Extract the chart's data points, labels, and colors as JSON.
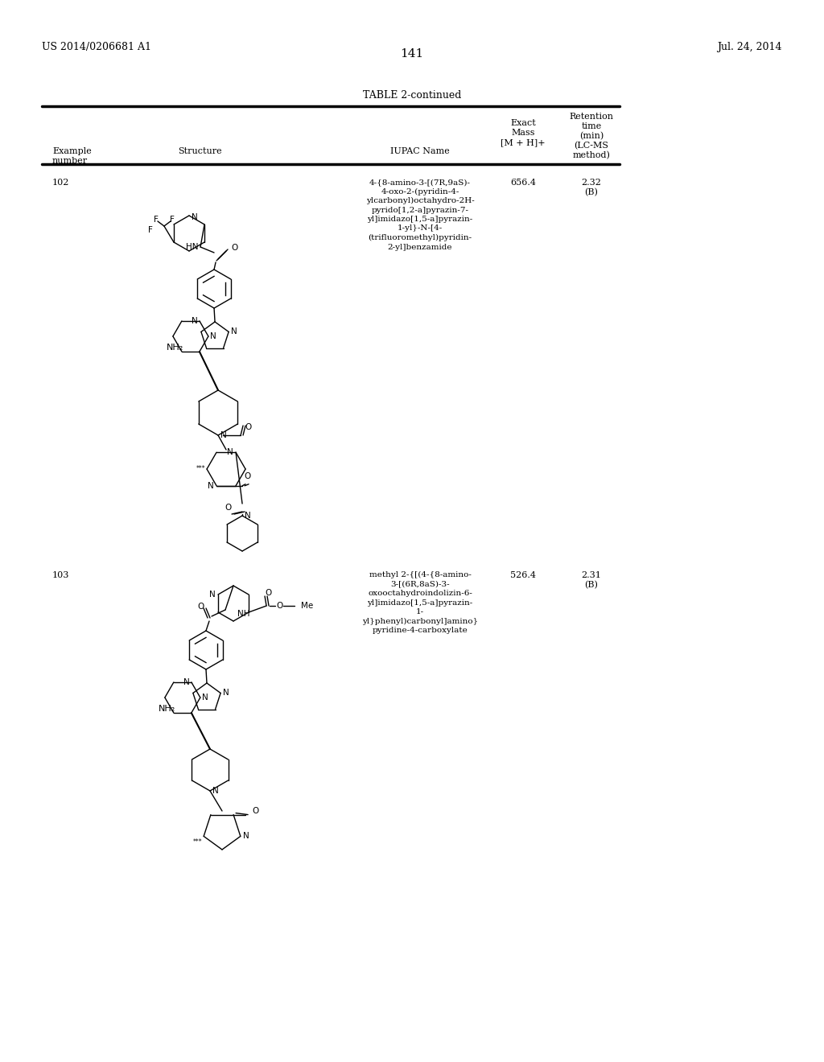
{
  "page_number": "141",
  "patent_left": "US 2014/0206681 A1",
  "patent_right": "Jul. 24, 2014",
  "table_title": "TABLE 2-continued",
  "bg_color": "#ffffff",
  "rows": [
    {
      "example": "102",
      "iupac_lines": [
        "4-{8-amino-3-[(7R,9aS)-",
        "4-oxo-2-(pyridin-4-",
        "ylcarbonyl)octahydro-2H-",
        "pyrido[1,2-a]pyrazin-7-",
        "yl]imidazo[1,5-a]pyrazin-",
        "1-yl}-N-[4-",
        "(trifluoromethyl)pyridin-",
        "2-yl]benzamide"
      ],
      "mass": "656.4",
      "retention_line1": "2.32",
      "retention_line2": "(B)"
    },
    {
      "example": "103",
      "iupac_lines": [
        "methyl 2-{[(4-{8-amino-",
        "3-[(6R,8aS)-3-",
        "oxooctahydroindolizin-6-",
        "yl]imidazo[1,5-a]pyrazin-",
        "1-",
        "yl}phenyl)carbonyl]amino}",
        "pyridine-4-carboxylate"
      ],
      "mass": "526.4",
      "retention_line1": "2.31",
      "retention_line2": "(B)"
    }
  ]
}
